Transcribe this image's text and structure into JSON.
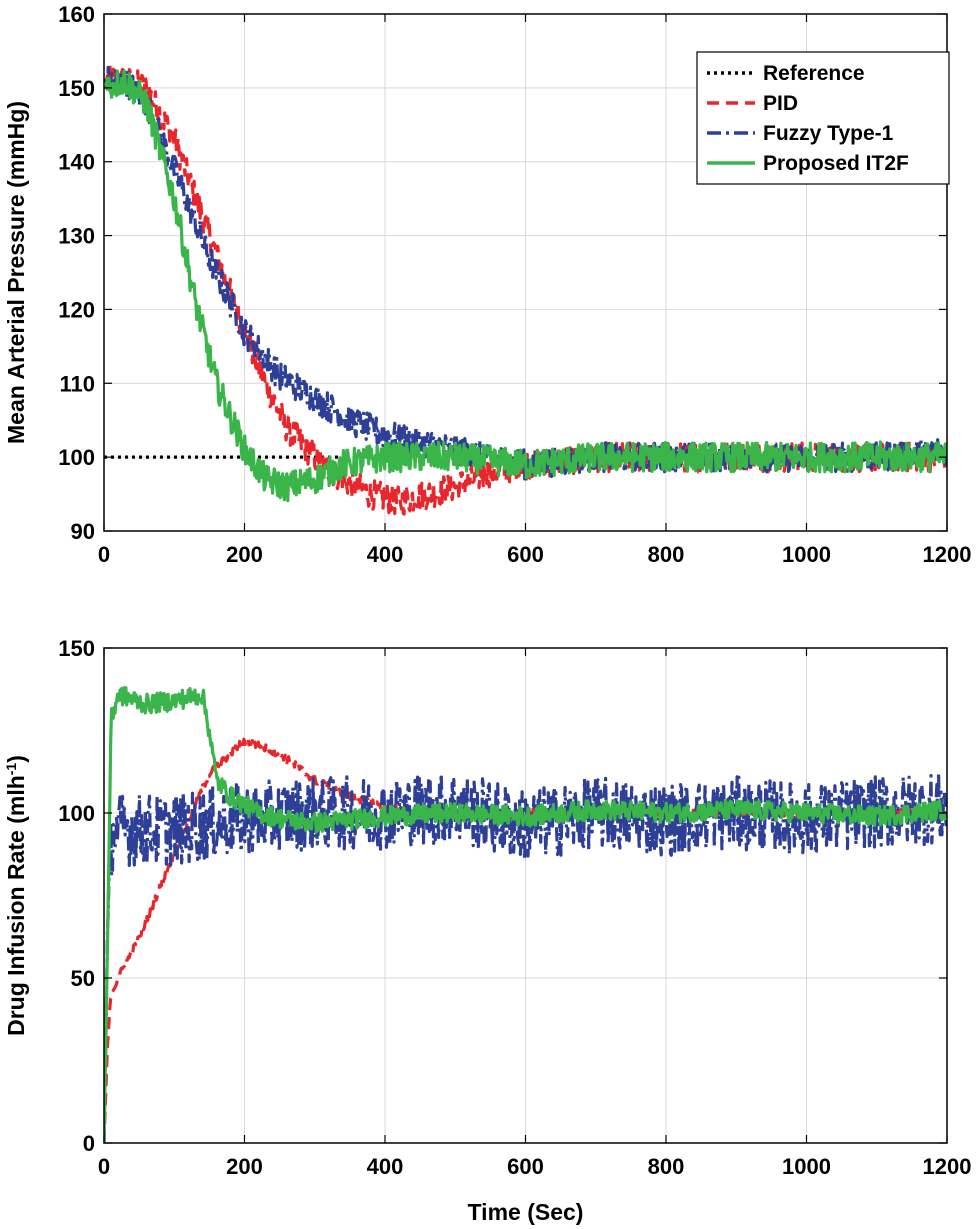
{
  "chart_data": [
    {
      "type": "line",
      "xlabel": "",
      "ylabel": "Mean Arterial Pressure (mmHg)",
      "xlim": [
        0,
        1200
      ],
      "ylim": [
        90,
        160
      ],
      "xticks": [
        "0",
        "200",
        "400",
        "600",
        "800",
        "1000",
        "1200"
      ],
      "yticks": [
        "90",
        "100",
        "110",
        "120",
        "130",
        "140",
        "150",
        "160"
      ],
      "grid": true,
      "legend": {
        "placement": "top-right",
        "entries": [
          "Reference",
          "PID",
          "Fuzzy Type-1",
          "Proposed IT2F"
        ]
      },
      "series": [
        {
          "name": "Reference",
          "color": "#000000",
          "style": "dotted",
          "x": [
            0,
            340
          ],
          "y": [
            100,
            100
          ]
        },
        {
          "name": "PID",
          "color": "#e8262b",
          "style": "dashed",
          "noise": 2.0,
          "x": [
            0,
            30,
            60,
            100,
            150,
            200,
            230,
            260,
            300,
            340,
            380,
            420,
            460,
            500,
            550,
            600,
            700,
            800,
            900,
            1000,
            1100,
            1200
          ],
          "y": [
            151,
            151,
            150,
            143,
            130,
            117,
            110,
            104,
            100,
            97,
            95,
            94,
            95,
            96,
            98,
            99,
            100,
            100,
            100,
            100,
            100,
            100
          ]
        },
        {
          "name": "Fuzzy Type-1",
          "color": "#2e3f97",
          "style": "dashdot",
          "noise": 2.0,
          "x": [
            0,
            30,
            60,
            100,
            150,
            200,
            250,
            300,
            350,
            400,
            450,
            500,
            550,
            600,
            700,
            800,
            900,
            1000,
            1100,
            1200
          ],
          "y": [
            151,
            151,
            148,
            139,
            127,
            117,
            111,
            108,
            105,
            103,
            102,
            101,
            100,
            99,
            100,
            100,
            100,
            100,
            100,
            101
          ]
        },
        {
          "name": "Proposed IT2F",
          "color": "#39b54a",
          "style": "solid",
          "noise": 2.0,
          "x": [
            0,
            30,
            60,
            100,
            130,
            160,
            200,
            230,
            260,
            300,
            340,
            400,
            500,
            600,
            700,
            800,
            900,
            1000,
            1100,
            1200
          ],
          "y": [
            150,
            151,
            148,
            135,
            121,
            110,
            101,
            97,
            96,
            97,
            99,
            100,
            100,
            99,
            100,
            100,
            100,
            100,
            100,
            100
          ]
        }
      ]
    },
    {
      "type": "line",
      "xlabel": "Time (Sec)",
      "ylabel": "Drug Infusion Rate (mlh",
      "ylabel_sup": "-1",
      "ylabel_close": ")",
      "xlim": [
        0,
        1200
      ],
      "ylim": [
        0,
        150
      ],
      "xticks": [
        "0",
        "200",
        "400",
        "600",
        "800",
        "1000",
        "1200"
      ],
      "yticks": [
        "0",
        "50",
        "100",
        "150"
      ],
      "grid": true,
      "series": [
        {
          "name": "PID",
          "color": "#e8262b",
          "style": "dashed",
          "noise": 1.2,
          "x": [
            0,
            5,
            10,
            20,
            50,
            100,
            150,
            200,
            250,
            300,
            350,
            400,
            450,
            500,
            600,
            700,
            800,
            900,
            1000,
            1100,
            1200
          ],
          "y": [
            0,
            30,
            45,
            50,
            62,
            88,
            112,
            122,
            118,
            110,
            105,
            102,
            100,
            99,
            100,
            100,
            100,
            100,
            100,
            100,
            100
          ]
        },
        {
          "name": "Fuzzy Type-1",
          "color": "#2e3f97",
          "style": "dashdot",
          "noise": 11,
          "x": [
            0,
            5,
            10,
            15,
            100,
            200,
            300,
            400,
            500,
            600,
            700,
            800,
            900,
            1000,
            1100,
            1200
          ],
          "y": [
            0,
            60,
            90,
            95,
            95,
            98,
            100,
            100,
            102,
            96,
            100,
            98,
            100,
            98,
            100,
            102
          ]
        },
        {
          "name": "Proposed IT2F",
          "color": "#39b54a",
          "style": "solid",
          "noise": 3,
          "x": [
            0,
            5,
            10,
            20,
            60,
            100,
            140,
            150,
            160,
            180,
            220,
            260,
            300,
            400,
            500,
            600,
            700,
            800,
            900,
            1000,
            1100,
            1200
          ],
          "y": [
            0,
            60,
            128,
            136,
            133,
            134,
            136,
            125,
            110,
            105,
            100,
            98,
            97,
            99,
            100,
            99,
            101,
            100,
            101,
            100,
            99,
            101
          ]
        }
      ]
    }
  ]
}
